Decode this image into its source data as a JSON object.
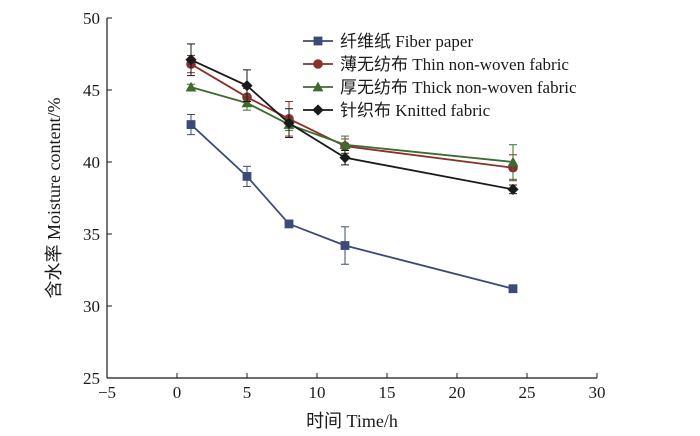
{
  "chart_data": {
    "type": "line",
    "xlabel": "时间 Time/h",
    "ylabel": "含水率 Moisture content/%",
    "xlim": [
      -5,
      30
    ],
    "ylim": [
      25,
      50
    ],
    "xticks": [
      -5,
      0,
      5,
      10,
      15,
      20,
      25,
      30
    ],
    "yticks": [
      25,
      30,
      35,
      40,
      45,
      50
    ],
    "legend_position": "top-right",
    "grid": false,
    "series": [
      {
        "name": "纤维纸 Fiber paper",
        "marker": "square",
        "color": "#3b4a78",
        "x": [
          1,
          5,
          8,
          12,
          24
        ],
        "y": [
          42.6,
          39.0,
          35.7,
          34.2,
          31.2
        ],
        "err": [
          0.7,
          0.7,
          0.2,
          1.3,
          0.2
        ]
      },
      {
        "name": "薄无纺布 Thin non-woven fabric",
        "marker": "circle",
        "color": "#8a2f2a",
        "x": [
          1,
          5,
          8,
          12,
          24
        ],
        "y": [
          46.8,
          44.5,
          43.0,
          41.1,
          39.6
        ],
        "err": [
          0.6,
          0.6,
          1.2,
          0.5,
          0.9
        ]
      },
      {
        "name": "厚无纺布 Thick non-woven fabric",
        "marker": "triangle",
        "color": "#3e6b2f",
        "x": [
          1,
          5,
          8,
          12,
          24
        ],
        "y": [
          45.2,
          44.1,
          42.6,
          41.2,
          40.0
        ],
        "err": [
          0.2,
          0.5,
          0.4,
          0.6,
          1.2
        ]
      },
      {
        "name": "针织布 Knitted fabric",
        "marker": "diamond",
        "color": "#1a1a1a",
        "x": [
          1,
          5,
          8,
          12,
          24
        ],
        "y": [
          47.1,
          45.3,
          42.7,
          40.3,
          38.1
        ],
        "err": [
          1.1,
          1.1,
          1.0,
          0.5,
          0.3
        ]
      }
    ]
  }
}
